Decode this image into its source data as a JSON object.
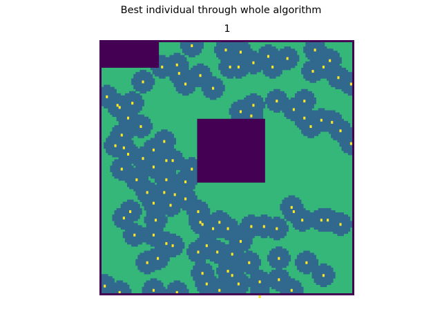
{
  "figure": {
    "suptitle": "Best individual through whole algorithm",
    "axes_title": "1"
  },
  "chart_data": {
    "type": "heatmap",
    "title": "1",
    "colormap": "viridis",
    "grid": false,
    "colors": {
      "border": "#440154",
      "obstacle": "#440154",
      "coverage": "#31688e",
      "free": "#35b779",
      "sensor": "#fde725"
    },
    "grid_size": [
      120,
      120
    ],
    "obstacles": [
      {
        "row": [
          0,
          13
        ],
        "col": [
          0,
          28
        ]
      },
      {
        "row": [
          37,
          67
        ],
        "col": [
          46,
          78
        ]
      }
    ],
    "sensor_radius": 5.2,
    "sensors": [
      [
        43,
        2
      ],
      [
        59,
        4
      ],
      [
        66,
        5
      ],
      [
        79,
        7
      ],
      [
        101,
        4
      ],
      [
        108,
        9
      ],
      [
        36,
        11
      ],
      [
        61,
        12
      ],
      [
        65,
        12
      ],
      [
        72,
        10
      ],
      [
        81,
        12
      ],
      [
        88,
        8
      ],
      [
        105,
        12
      ],
      [
        112,
        17
      ],
      [
        118,
        20
      ],
      [
        100,
        14
      ],
      [
        29,
        12
      ],
      [
        37,
        15
      ],
      [
        40,
        20
      ],
      [
        47,
        16
      ],
      [
        53,
        22
      ],
      [
        20,
        19
      ],
      [
        8,
        30
      ],
      [
        15,
        29
      ],
      [
        3,
        26
      ],
      [
        9,
        31
      ],
      [
        66,
        33
      ],
      [
        71,
        35
      ],
      [
        83,
        28
      ],
      [
        91,
        32
      ],
      [
        96,
        36
      ],
      [
        104,
        37
      ],
      [
        99,
        40
      ],
      [
        109,
        38
      ],
      [
        113,
        42
      ],
      [
        118,
        48
      ],
      [
        13,
        36
      ],
      [
        19,
        40
      ],
      [
        10,
        44
      ],
      [
        7,
        49
      ],
      [
        11,
        50
      ],
      [
        10,
        60
      ],
      [
        13,
        53
      ],
      [
        20,
        55
      ],
      [
        25,
        51
      ],
      [
        30,
        47
      ],
      [
        31,
        56
      ],
      [
        34,
        56
      ],
      [
        31,
        65
      ],
      [
        25,
        59
      ],
      [
        30,
        71
      ],
      [
        22,
        71
      ],
      [
        17,
        65
      ],
      [
        33,
        77
      ],
      [
        40,
        74
      ],
      [
        46,
        80
      ],
      [
        56,
        85
      ],
      [
        60,
        88
      ],
      [
        47,
        85
      ],
      [
        25,
        76
      ],
      [
        11,
        83
      ],
      [
        26,
        84
      ],
      [
        48,
        86
      ],
      [
        71,
        87
      ],
      [
        77,
        87
      ],
      [
        83,
        88
      ],
      [
        91,
        80
      ],
      [
        95,
        84
      ],
      [
        90,
        78
      ],
      [
        104,
        84
      ],
      [
        107,
        84
      ],
      [
        113,
        86
      ],
      [
        31,
        95
      ],
      [
        34,
        96
      ],
      [
        27,
        102
      ],
      [
        22,
        104
      ],
      [
        46,
        99
      ],
      [
        50,
        96
      ],
      [
        55,
        99
      ],
      [
        66,
        94
      ],
      [
        62,
        100
      ],
      [
        60,
        108
      ],
      [
        48,
        109
      ],
      [
        50,
        114
      ],
      [
        70,
        104
      ],
      [
        75,
        113
      ],
      [
        84,
        112
      ],
      [
        97,
        104
      ],
      [
        105,
        110
      ],
      [
        84,
        102
      ],
      [
        90,
        117
      ],
      [
        75,
        120
      ],
      [
        65,
        114
      ],
      [
        62,
        110
      ],
      [
        56,
        117
      ],
      [
        25,
        117
      ],
      [
        9,
        118
      ],
      [
        2,
        115
      ],
      [
        25,
        91
      ],
      [
        16,
        91
      ],
      [
        14,
        80
      ],
      [
        36,
        118
      ],
      [
        96,
        28
      ],
      [
        72,
        30
      ],
      [
        40,
        66
      ],
      [
        35,
        72
      ],
      [
        53,
        88
      ],
      [
        43,
        60
      ]
    ],
    "xlim": [
      0,
      120
    ],
    "ylim": [
      0,
      120
    ]
  }
}
